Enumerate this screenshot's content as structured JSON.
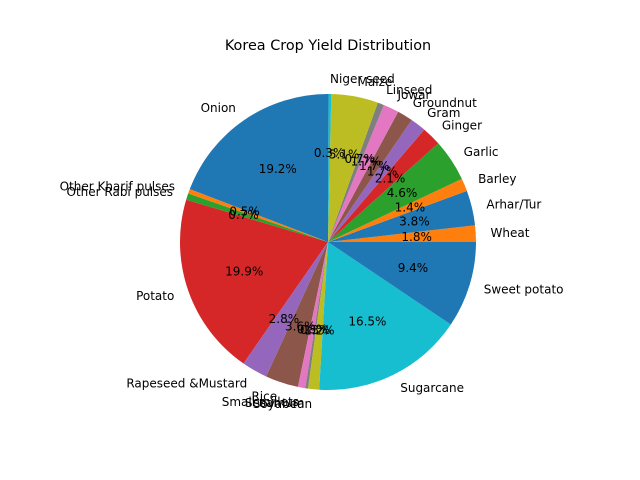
{
  "chart_data": {
    "type": "pie",
    "title": "Korea Crop Yield Distribution",
    "start_angle_deg": 0,
    "direction": "counterclockwise",
    "slices": [
      {
        "label": "Wheat",
        "value": 1.8,
        "pct_label": "1.8%",
        "color": "#ff7f0e"
      },
      {
        "label": "Arhar/Tur",
        "value": 3.8,
        "pct_label": "3.8%",
        "color": "#1f77b4"
      },
      {
        "label": "Barley",
        "value": 1.4,
        "pct_label": "1.4%",
        "color": "#ff7f0e"
      },
      {
        "label": "Garlic",
        "value": 4.6,
        "pct_label": "4.6%",
        "color": "#2ca02c"
      },
      {
        "label": "Ginger",
        "value": 2.1,
        "pct_label": "2.1%",
        "color": "#d62728"
      },
      {
        "label": "Gram",
        "value": 1.7,
        "pct_label": "1.7%",
        "color": "#9467bd"
      },
      {
        "label": "Groundnut",
        "value": 1.7,
        "pct_label": "1.7%",
        "color": "#8c564b"
      },
      {
        "label": "Jowar",
        "value": 1.7,
        "pct_label": "1.7%",
        "color": "#e377c2"
      },
      {
        "label": "Linseed",
        "value": 0.7,
        "pct_label": "0.7%",
        "color": "#7f7f7f"
      },
      {
        "label": "Maize",
        "value": 5.1,
        "pct_label": "5.1%",
        "color": "#bcbd22"
      },
      {
        "label": "Niger seed",
        "value": 0.3,
        "pct_label": "0.3%",
        "color": "#17becf"
      },
      {
        "label": "Onion",
        "value": 19.2,
        "pct_label": "19.2%",
        "color": "#1f77b4"
      },
      {
        "label": "Other Kharif pulses",
        "value": 0.5,
        "pct_label": "0.5%",
        "color": "#ff7f0e"
      },
      {
        "label": "Other Rabi pulses",
        "value": 0.7,
        "pct_label": "0.7%",
        "color": "#2ca02c"
      },
      {
        "label": "Potato",
        "value": 19.9,
        "pct_label": "19.9%",
        "color": "#d62728"
      },
      {
        "label": "Rapeseed &Mustard",
        "value": 2.8,
        "pct_label": "2.8%",
        "color": "#9467bd"
      },
      {
        "label": "Rice",
        "value": 3.6,
        "pct_label": "3.6%",
        "color": "#8c564b"
      },
      {
        "label": "Small millets",
        "value": 0.8,
        "pct_label": "0.8%",
        "color": "#e377c2"
      },
      {
        "label": "Sesamum",
        "value": 0.3,
        "pct_label": "0.3%",
        "color": "#7f7f7f"
      },
      {
        "label": "Soyabean",
        "value": 1.2,
        "pct_label": "1.2%",
        "color": "#bcbd22"
      },
      {
        "label": "Sugarcane",
        "value": 16.5,
        "pct_label": "16.5%",
        "color": "#17becf"
      },
      {
        "label": "Sweet potato",
        "value": 9.4,
        "pct_label": "9.4%",
        "color": "#1f77b4"
      }
    ]
  }
}
